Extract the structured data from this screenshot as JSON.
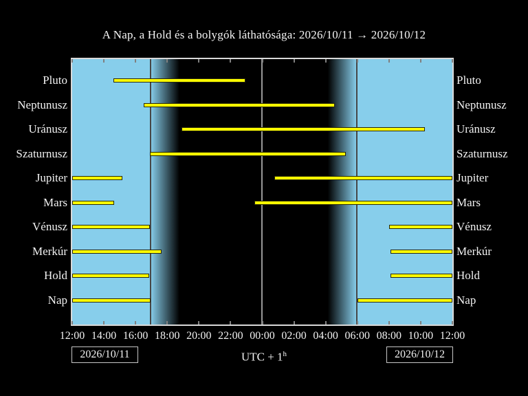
{
  "title": "A Nap, a Hold és a bolygók láthatósága: 2026/10/11 → 2026/10/12",
  "footer": {
    "date_left": "2026/10/11",
    "date_right": "2026/10/12",
    "utc_base": "UTC + 1",
    "utc_sup": "h"
  },
  "chart_data": {
    "type": "gantt",
    "title": "A Nap, a Hold és a bolygók láthatósága: 2026/10/11 → 2026/10/12",
    "description": "Visibility timeline of Sun, Moon and planets; yellow bars mark when each body is above the horizon/visible; background shows daylight (blue), twilight (gradient) and night (black). Hours are offsets from 12:00 local (UTC+1).",
    "x_axis": {
      "start_label": "12:00",
      "range_hours": 24,
      "tick_interval_hours": 2,
      "tick_labels": [
        "12:00",
        "14:00",
        "16:00",
        "18:00",
        "20:00",
        "22:00",
        "00:00",
        "02:00",
        "04:00",
        "06:00",
        "08:00",
        "10:00",
        "12:00"
      ]
    },
    "rows": [
      {
        "label": "Pluto",
        "intervals": [
          [
            2.6,
            10.94
          ]
        ]
      },
      {
        "label": "Neptunusz",
        "intervals": [
          [
            4.51,
            16.58
          ]
        ]
      },
      {
        "label": "Uránusz",
        "intervals": [
          [
            6.9,
            22.26
          ]
        ]
      },
      {
        "label": "Szaturnusz",
        "intervals": [
          [
            4.9,
            17.27
          ]
        ]
      },
      {
        "label": "Jupiter",
        "intervals": [
          [
            0,
            3.17
          ],
          [
            12.76,
            24
          ]
        ]
      },
      {
        "label": "Mars",
        "intervals": [
          [
            0,
            2.65
          ],
          [
            11.5,
            24
          ]
        ]
      },
      {
        "label": "Vénusz",
        "intervals": [
          [
            0,
            4.9
          ],
          [
            20.01,
            24
          ]
        ]
      },
      {
        "label": "Merkúr",
        "intervals": [
          [
            0,
            5.64
          ],
          [
            20.1,
            24
          ]
        ]
      },
      {
        "label": "Hold",
        "intervals": [
          [
            0,
            4.85
          ],
          [
            20.1,
            24
          ]
        ]
      },
      {
        "label": "Nap",
        "intervals": [
          [
            0,
            4.95
          ],
          [
            18.01,
            24
          ]
        ]
      }
    ],
    "night": {
      "sunset_hour": 4.95,
      "dusk_end_hour": 6.77,
      "dawn_start_hour": 16.14,
      "sunrise_hour": 17.95,
      "midnight_hour": 11.98
    },
    "colors": {
      "bar": "#ffff00",
      "bar_border": "#26260a",
      "day": "#87ceeb",
      "night": "#000000",
      "frame": "#d9d9d9",
      "tick": "#808080",
      "midnight_line": "#999999",
      "twilight_line": "#464646",
      "text": "#f2f2f2",
      "background": "#000000"
    }
  }
}
